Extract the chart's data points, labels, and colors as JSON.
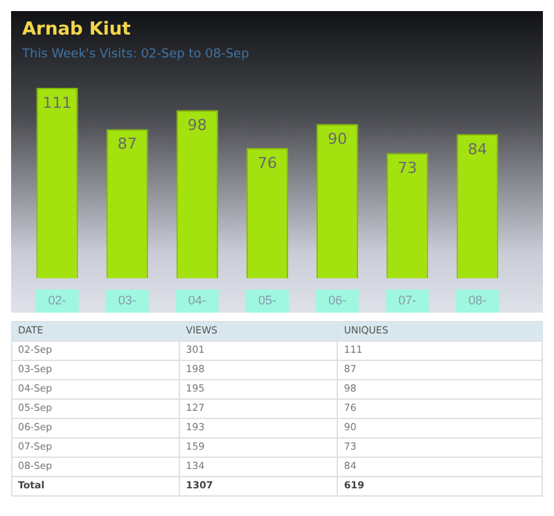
{
  "chart_data": [
    {
      "type": "bar",
      "title": "Arnab Kiut",
      "subtitle": "This Week's Visits: 02-Sep to 08-Sep",
      "categories": [
        "02-",
        "03-",
        "04-",
        "05-",
        "06-",
        "07-",
        "08-"
      ],
      "values": [
        111,
        87,
        98,
        76,
        90,
        73,
        84
      ],
      "color": "#a4e20f",
      "data_labels": true,
      "grid": false,
      "legend": false
    },
    {
      "type": "other",
      "xlabel": "DATE",
      "categories": [
        "02-Sep",
        "03-Sep",
        "04-Sep",
        "05-Sep",
        "06-Sep",
        "07-Sep",
        "08-Sep"
      ],
      "series": [
        {
          "name": "VIEWS",
          "values": [
            301,
            198,
            195,
            127,
            193,
            159,
            134
          ]
        },
        {
          "name": "UNIQUES",
          "values": [
            111,
            87,
            98,
            76,
            90,
            73,
            84
          ]
        }
      ],
      "annotations": [
        "Total"
      ],
      "totals": [
        "1307",
        "619"
      ],
      "data_labels": true
    }
  ]
}
